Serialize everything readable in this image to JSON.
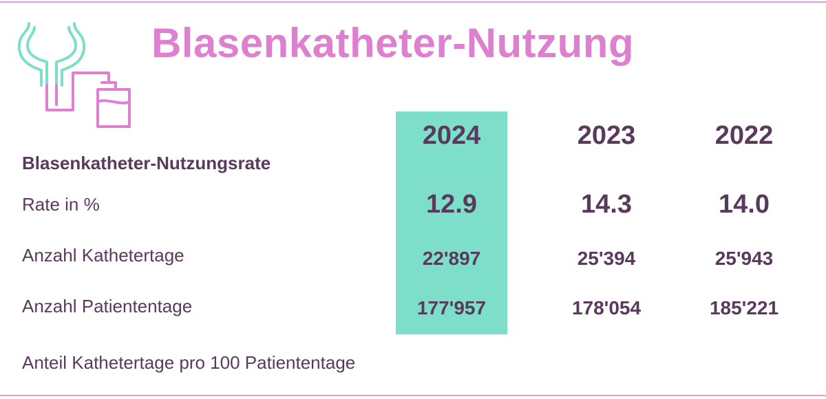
{
  "title": "Blasenkatheter-Nutzung",
  "icon": "bladder-catheter-bag-icon",
  "colors": {
    "title": "#de80d0",
    "highlight": "#7ddfc9",
    "text": "#5a3a5c",
    "rule": "#e49ad6",
    "icon_teal": "#7ddfc9",
    "icon_pink": "#de80d0"
  },
  "table": {
    "section_label": "Blasenkatheter-Nutzungsrate",
    "years": [
      "2024",
      "2023",
      "2022"
    ],
    "highlighted_year": "2024",
    "rows": [
      {
        "label": "Rate in %",
        "values": [
          "12.9",
          "14.3",
          "14.0"
        ]
      },
      {
        "label": "Anzahl Kathetertage",
        "values": [
          "22'897",
          "25'394",
          "25'943"
        ]
      },
      {
        "label": "Anzahl Patiententage",
        "values": [
          "177'957",
          "178'054",
          "185'221"
        ]
      }
    ]
  },
  "footnote": "Anteil Kathetertage pro 100 Patiententage"
}
